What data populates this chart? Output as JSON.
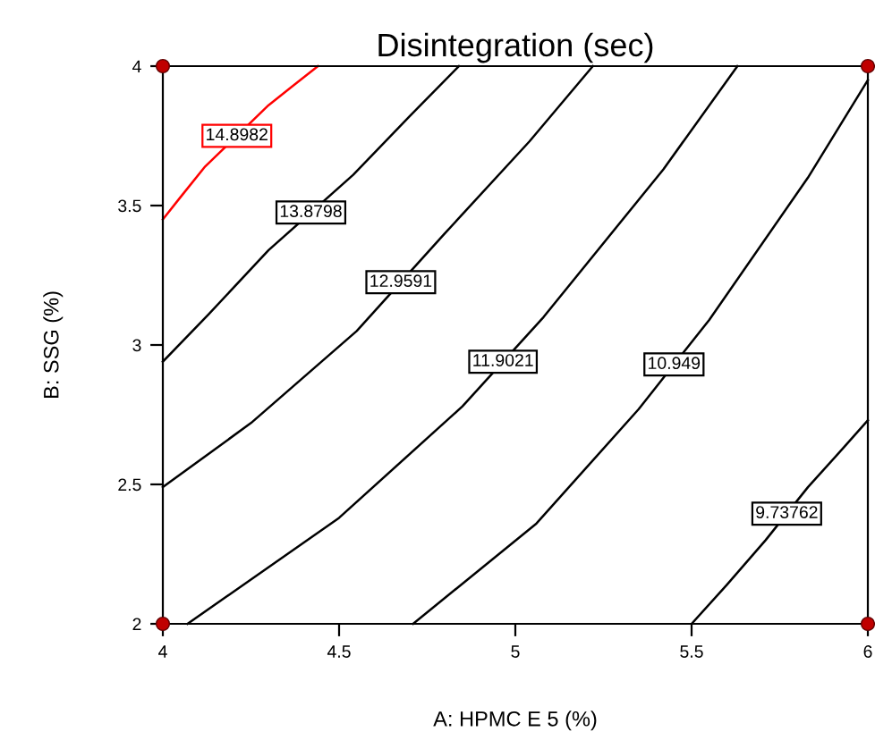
{
  "chart_data": {
    "type": "line",
    "title": "Disintegration (sec)",
    "xlabel": "A: HPMC E 5 (%)",
    "ylabel": "B: SSG (%)",
    "xlim": [
      4,
      6
    ],
    "xticks": [
      4,
      4.5,
      5,
      5.5,
      6
    ],
    "ylim": [
      2,
      4
    ],
    "yticks": [
      2,
      2.5,
      3,
      3.5,
      4
    ],
    "grid": false,
    "legend": false,
    "marker": "none",
    "line_style": "solid",
    "series": [
      {
        "name": "14.8982",
        "color": "#ff0000",
        "x": [
          4,
          4.05,
          4.12,
          4.3,
          4.37,
          4.44
        ],
        "values": [
          3.45,
          3.53,
          3.64,
          3.86,
          3.93,
          4
        ]
      },
      {
        "name": "13.8798",
        "color": "#000000",
        "x": [
          4,
          4.13,
          4.3,
          4.54,
          4.7,
          4.84
        ],
        "values": [
          2.94,
          3.11,
          3.34,
          3.61,
          3.82,
          4
        ]
      },
      {
        "name": "12.9591",
        "color": "#000000",
        "x": [
          4,
          4.25,
          4.55,
          4.8,
          5.04,
          5.22
        ],
        "values": [
          2.49,
          2.72,
          3.05,
          3.4,
          3.73,
          4
        ]
      },
      {
        "name": "11.9021",
        "color": "#000000",
        "x": [
          4.07,
          4.5,
          4.85,
          5.08,
          5.42,
          5.63
        ],
        "values": [
          2,
          2.38,
          2.78,
          3.1,
          3.63,
          4
        ]
      },
      {
        "name": "10.949",
        "color": "#000000",
        "x": [
          4.71,
          5.06,
          5.35,
          5.55,
          5.83,
          6
        ],
        "values": [
          2,
          2.36,
          2.77,
          3.09,
          3.6,
          3.95
        ]
      },
      {
        "name": "9.73762",
        "color": "#000000",
        "x": [
          5.5,
          5.6,
          5.71,
          5.83,
          5.93,
          6
        ],
        "values": [
          2,
          2.14,
          2.3,
          2.49,
          2.63,
          2.73
        ]
      },
      {
        "type": "scatter",
        "marker": "circle",
        "color": "#c00000",
        "x": [
          4,
          6,
          4,
          6
        ],
        "values": [
          4,
          4,
          2,
          2
        ]
      }
    ]
  }
}
